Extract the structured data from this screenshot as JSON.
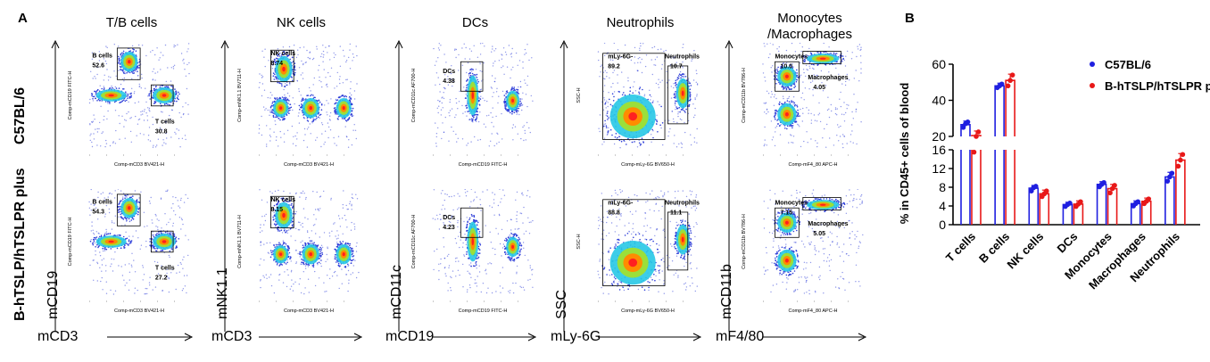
{
  "panel_a": {
    "letter": "A",
    "row_labels": [
      "C57BL/6",
      "B-hTSLP/hTSLPR plus"
    ],
    "columns": [
      {
        "title": "T/B cells",
        "x_axis": "mCD3",
        "y_axis": "mCD19",
        "small_x": "Comp-mCD3 BV421-H",
        "small_y": "Comp-mCD19 FITC-H",
        "gates": [
          {
            "name": "B cells",
            "values": [
              "52.6",
              "54.3"
            ]
          },
          {
            "name": "T cells",
            "values": [
              "30.8",
              "27.2"
            ]
          }
        ]
      },
      {
        "title": "NK cells",
        "x_axis": "mCD3",
        "y_axis": "mNK1.1",
        "small_x": "Comp-mCD3 BV421-H",
        "small_y": "Comp-mNK1.1 BV711-H",
        "gates": [
          {
            "name": "NK cells",
            "values": [
              "8.74",
              "8.15"
            ]
          }
        ]
      },
      {
        "title": "DCs",
        "x_axis": "mCD19",
        "y_axis": "mCD11c",
        "small_x": "Comp-mCD19 FITC-H",
        "small_y": "Comp-mCD11c AF700-H",
        "gates": [
          {
            "name": "DCs",
            "values": [
              "4.38",
              "4.23"
            ]
          }
        ]
      },
      {
        "title": "Neutrophils",
        "x_axis": "mLy-6G",
        "y_axis": "SSC",
        "small_x": "Comp-mLy-6G BV650-H",
        "small_y": "SSC-H",
        "gates": [
          {
            "name": "mLy-6G-",
            "values": [
              "89.2",
              "88.8"
            ]
          },
          {
            "name": "Neutrophils",
            "values": [
              "10.7",
              "11.1"
            ]
          }
        ]
      },
      {
        "title": "Monocytes /Macrophages",
        "title_lines": [
          "Monocytes",
          "/Macrophages"
        ],
        "x_axis": "mF4/80",
        "y_axis": "mCD11b",
        "small_x": "Comp-mF4_80 APC-H",
        "small_y": "Comp-mCD11b BV786-H",
        "gates": [
          {
            "name": "Monocytes",
            "values": [
              "10.0",
              "7.15"
            ]
          },
          {
            "name": "Macrophages",
            "values": [
              "4.05",
              "5.05"
            ]
          }
        ]
      }
    ]
  },
  "chart_data": {
    "type": "bar",
    "panel_letter": "B",
    "ylabel": "% in CD45+ cells of blood",
    "categories": [
      "T cells",
      "B cells",
      "NK cells",
      "DCs",
      "Monocytes",
      "Macrophages",
      "Neutrophils"
    ],
    "broken_axis": true,
    "lower_ylim": [
      0,
      16
    ],
    "lower_ticks": [
      0,
      4,
      8,
      12,
      16
    ],
    "upper_ylim": [
      20,
      60
    ],
    "upper_ticks": [
      20,
      40,
      60
    ],
    "series": [
      {
        "name": "C57BL/6",
        "color": "#1f1fe0",
        "values": [
          26.5,
          48.0,
          7.8,
          4.3,
          8.6,
          4.5,
          10.2
        ],
        "points": [
          [
            25,
            27,
            28
          ],
          [
            47,
            48,
            49
          ],
          [
            7.2,
            7.9,
            8.2
          ],
          [
            3.9,
            4.3,
            4.6
          ],
          [
            8.1,
            8.6,
            9.0
          ],
          [
            4.0,
            4.5,
            4.9
          ],
          [
            9.3,
            10.2,
            11.0
          ]
        ]
      },
      {
        "name": "B-hTSLP/hTSLPR plus",
        "color": "#e81818",
        "values": [
          20.5,
          51.0,
          6.6,
          4.4,
          7.7,
          5.0,
          13.8
        ],
        "points": [
          [
            15.5,
            20,
            22.5
          ],
          [
            48,
            51,
            54
          ],
          [
            6.0,
            6.6,
            7.2
          ],
          [
            3.9,
            4.4,
            4.9
          ],
          [
            6.8,
            7.7,
            8.4
          ],
          [
            4.5,
            5.0,
            5.5
          ],
          [
            12.5,
            13.8,
            15.0
          ]
        ]
      }
    ],
    "legend_position": "top-right"
  },
  "colors": {
    "density_low": "#2f3fd8",
    "density_mid1": "#27c8e6",
    "density_mid2": "#9bdf3a",
    "density_high": "#ff8c00",
    "density_peak": "#ff2020"
  }
}
